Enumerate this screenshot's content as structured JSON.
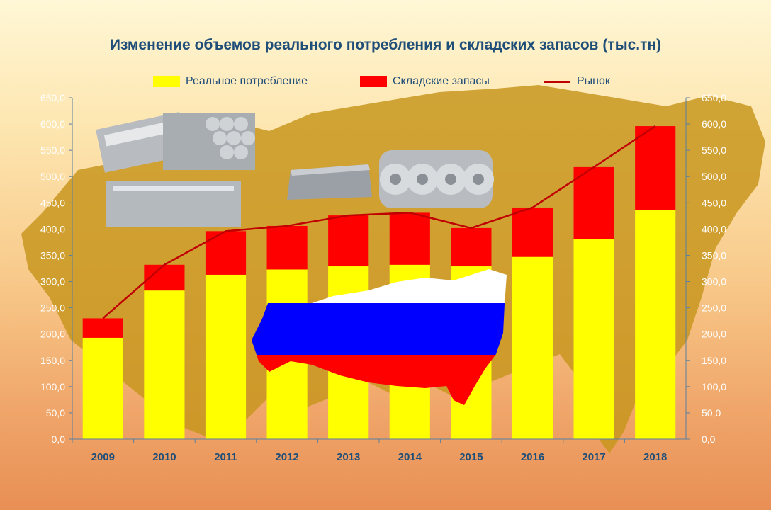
{
  "title": "Изменение объемов реального потребления и складских запасов (тыс.тн)",
  "legend": {
    "consumption": "Реальное потребление",
    "stock": "Складские запасы",
    "market": "Рынок"
  },
  "colors": {
    "consumption": "#ffff00",
    "stock": "#ff0000",
    "market": "#c00000",
    "title": "#1f4e79",
    "axis": "#5b7f9f",
    "map": "#c8961e"
  },
  "background_icons": [
    "steel-profiles-image",
    "steel-pipes-image",
    "steel-sheet-image",
    "steel-coils-image",
    "russia-flag-map-image",
    "russia-map-silhouette"
  ],
  "chart_data": {
    "type": "bar",
    "stacked": true,
    "categories": [
      "2009",
      "2010",
      "2011",
      "2012",
      "2013",
      "2014",
      "2015",
      "2016",
      "2017",
      "2018"
    ],
    "series": [
      {
        "name": "Реальное потребление",
        "values": [
          193,
          283,
          313,
          323,
          329,
          332,
          329,
          347,
          381,
          436
        ]
      },
      {
        "name": "Складские запасы",
        "values": [
          37,
          49,
          83,
          83,
          97,
          99,
          73,
          94,
          137,
          160
        ]
      }
    ],
    "line": {
      "name": "Рынок",
      "values": [
        230,
        332,
        396,
        406,
        426,
        431,
        402,
        441,
        518,
        596
      ]
    },
    "ylim": [
      0,
      650
    ],
    "yticks": [
      "0,0",
      "50,0",
      "100,0",
      "150,0",
      "200,0",
      "250,0",
      "300,0",
      "350,0",
      "400,0",
      "450,0",
      "500,0",
      "550,0",
      "600,0",
      "650,0"
    ],
    "grid": false,
    "legend_position": "top"
  }
}
